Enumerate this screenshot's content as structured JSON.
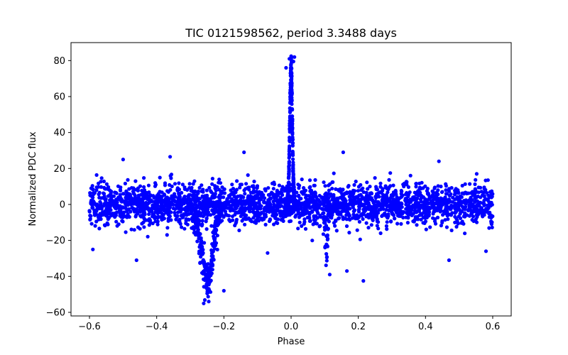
{
  "chart_data": {
    "type": "scatter",
    "title": "TIC 0121598562, period 3.3488 days",
    "xlabel": "Phase",
    "ylabel": "Normalized PDC flux",
    "xlim": [
      -0.655,
      0.655
    ],
    "ylim": [
      -62,
      90
    ],
    "xticks": [
      -0.6,
      -0.4,
      -0.2,
      0.0,
      0.2,
      0.4,
      0.6
    ],
    "xtick_labels": [
      "−0.6",
      "−0.4",
      "−0.2",
      "0.0",
      "0.2",
      "0.4",
      "0.6"
    ],
    "yticks": [
      -60,
      -40,
      -20,
      0,
      20,
      40,
      60,
      80
    ],
    "ytick_labels": [
      "−60",
      "−40",
      "−20",
      "0",
      "20",
      "40",
      "60",
      "80"
    ],
    "marker_color": "#0000ff",
    "grid": false,
    "series": [
      {
        "name": "flux",
        "components": [
          {
            "kind": "baseline",
            "x_range": [
              -0.6,
              0.6
            ],
            "y_mean": 0,
            "y_sigma": 5.5,
            "n": 2600
          },
          {
            "kind": "secondary_eclipse_dip",
            "x_center": -0.25,
            "x_halfwidth": 0.045,
            "y_depth": -42,
            "n": 260
          },
          {
            "kind": "primary_peak",
            "x_center": 0.0,
            "x_halfwidth": 0.012,
            "y_peak": 82,
            "n": 320
          },
          {
            "kind": "small_dip",
            "x_center": 0.105,
            "x_halfwidth": 0.01,
            "y_depth": -30,
            "n": 40
          }
        ],
        "outliers": [
          {
            "x": 0.215,
            "y": -42.5
          },
          {
            "x": 0.01,
            "y": 82
          },
          {
            "x": -0.005,
            "y": 81
          },
          {
            "x": 0.007,
            "y": 79.5
          },
          {
            "x": -0.015,
            "y": 76
          },
          {
            "x": -0.14,
            "y": 29
          },
          {
            "x": 0.155,
            "y": 29
          },
          {
            "x": -0.36,
            "y": 26.5
          },
          {
            "x": -0.5,
            "y": 25
          },
          {
            "x": 0.44,
            "y": 24
          },
          {
            "x": -0.26,
            "y": -55
          },
          {
            "x": -0.245,
            "y": -54
          },
          {
            "x": -0.2,
            "y": -48
          },
          {
            "x": -0.59,
            "y": -25
          },
          {
            "x": -0.46,
            "y": -31
          },
          {
            "x": 0.115,
            "y": -39
          },
          {
            "x": 0.166,
            "y": -37
          },
          {
            "x": 0.47,
            "y": -31
          },
          {
            "x": -0.07,
            "y": -27
          },
          {
            "x": 0.58,
            "y": -26
          }
        ]
      }
    ]
  }
}
